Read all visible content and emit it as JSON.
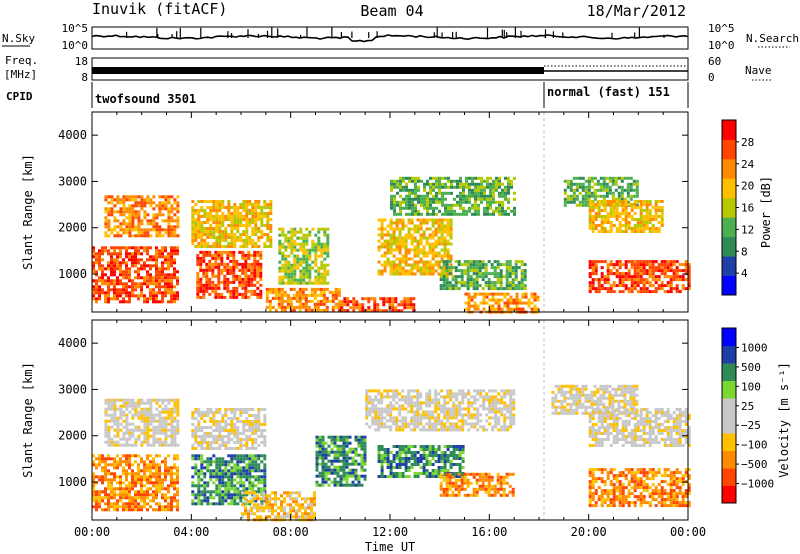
{
  "header": {
    "station": "Inuvik (fitACF)",
    "beam": "Beam 04",
    "date": "18/Mar/2012"
  },
  "strip_labels": {
    "nsky": "N.Sky",
    "nsearch": "N.Search",
    "freq_line1": "Freq.",
    "freq_line2": "[MHz]",
    "cpid": "CPID",
    "nave": "Nave"
  },
  "strip_ticks": {
    "nsky_left": [
      "10^5",
      "10^0"
    ],
    "nsky_right": [
      "10^5",
      "10^0"
    ],
    "freq_left": [
      "18",
      "8"
    ],
    "freq_right": [
      "60",
      "0"
    ]
  },
  "cpid": {
    "segments": [
      {
        "label": "twofsound 3501",
        "start_hour": 0,
        "end_hour": 18
      },
      {
        "label": "normal (fast) 151",
        "start_hour": 18,
        "end_hour": 24
      }
    ]
  },
  "colors": {
    "power": [
      "#0000ff",
      "#1f3fa8",
      "#2e8b57",
      "#4caf50",
      "#b5c800",
      "#ffc000",
      "#ff8c00",
      "#ff4500",
      "#ff0000"
    ],
    "velocity": [
      "#ff0000",
      "#ff4500",
      "#ff8c00",
      "#ffc000",
      "#c8c8c8",
      "#c8c8c8",
      "#7cd632",
      "#2e8b57",
      "#1f3fa8",
      "#0000ff"
    ]
  },
  "chart_data": [
    {
      "type": "heatmap",
      "name": "power",
      "xlabel": "",
      "ylabel": "Slant Range [km]",
      "xlim": [
        0,
        24
      ],
      "ylim": [
        180,
        4500
      ],
      "yticks": [
        1000,
        2000,
        3000,
        4000
      ],
      "colorbar": {
        "label": "Power [dB]",
        "ticks": [
          "28",
          "24",
          "20",
          "16",
          "12",
          "8",
          "4"
        ],
        "range": [
          0,
          32
        ]
      },
      "regions": [
        {
          "t0": 0.0,
          "t1": 3.5,
          "r0": 400,
          "r1": 1600,
          "value": 28
        },
        {
          "t0": 0.5,
          "t1": 3.5,
          "r0": 1800,
          "r1": 2700,
          "value": 22
        },
        {
          "t0": 4.2,
          "t1": 6.8,
          "r0": 500,
          "r1": 1500,
          "value": 28
        },
        {
          "t0": 4.0,
          "t1": 7.2,
          "r0": 1600,
          "r1": 2600,
          "value": 18
        },
        {
          "t0": 7.0,
          "t1": 10.0,
          "r0": 200,
          "r1": 700,
          "value": 24
        },
        {
          "t0": 7.5,
          "t1": 9.5,
          "r0": 800,
          "r1": 2000,
          "value": 16
        },
        {
          "t0": 10.0,
          "t1": 13.0,
          "r0": 200,
          "r1": 500,
          "value": 26
        },
        {
          "t0": 11.5,
          "t1": 14.5,
          "r0": 1000,
          "r1": 2200,
          "value": 18
        },
        {
          "t0": 12.0,
          "t1": 17.0,
          "r0": 2300,
          "r1": 3100,
          "value": 12
        },
        {
          "t0": 14.0,
          "t1": 17.5,
          "r0": 700,
          "r1": 1300,
          "value": 10
        },
        {
          "t0": 15.0,
          "t1": 18.0,
          "r0": 200,
          "r1": 600,
          "value": 22
        },
        {
          "t0": 19.0,
          "t1": 22.0,
          "r0": 2500,
          "r1": 3100,
          "value": 10
        },
        {
          "t0": 20.0,
          "t1": 23.0,
          "r0": 1900,
          "r1": 2600,
          "value": 18
        },
        {
          "t0": 20.0,
          "t1": 24.0,
          "r0": 600,
          "r1": 1300,
          "value": 28
        }
      ]
    },
    {
      "type": "heatmap",
      "name": "velocity",
      "xlabel": "Time UT",
      "ylabel": "Slant Range [km]",
      "xlim": [
        0,
        24
      ],
      "ylim": [
        180,
        4500
      ],
      "xticks": [
        "00:00",
        "04:00",
        "08:00",
        "12:00",
        "16:00",
        "20:00",
        "00:00"
      ],
      "yticks": [
        1000,
        2000,
        3000,
        4000
      ],
      "colorbar": {
        "label": "Velocity [m s⁻¹]",
        "ticks": [
          "1000",
          "500",
          "100",
          "25",
          "−25",
          "−100",
          "−500",
          "−1000"
        ]
      },
      "regions": [
        {
          "t0": 0.0,
          "t1": 3.5,
          "r0": 400,
          "r1": 1600,
          "value": -300
        },
        {
          "t0": 0.5,
          "t1": 3.5,
          "r0": 1800,
          "r1": 2800,
          "value": 0
        },
        {
          "t0": 4.0,
          "t1": 7.0,
          "r0": 500,
          "r1": 1600,
          "value": 200
        },
        {
          "t0": 4.0,
          "t1": 7.0,
          "r0": 1700,
          "r1": 2600,
          "value": 0
        },
        {
          "t0": 6.0,
          "t1": 9.0,
          "r0": 200,
          "r1": 800,
          "value": -50
        },
        {
          "t0": 9.0,
          "t1": 11.0,
          "r0": 900,
          "r1": 2000,
          "value": 150
        },
        {
          "t0": 11.5,
          "t1": 15.0,
          "r0": 1100,
          "r1": 1800,
          "value": 200
        },
        {
          "t0": 11.0,
          "t1": 17.0,
          "r0": 2100,
          "r1": 3000,
          "value": 0
        },
        {
          "t0": 14.0,
          "t1": 17.0,
          "r0": 700,
          "r1": 1200,
          "value": -150
        },
        {
          "t0": 18.5,
          "t1": 22.0,
          "r0": 2500,
          "r1": 3100,
          "value": 0
        },
        {
          "t0": 20.0,
          "t1": 24.0,
          "r0": 1800,
          "r1": 2600,
          "value": 0
        },
        {
          "t0": 20.0,
          "t1": 24.0,
          "r0": 500,
          "r1": 1300,
          "value": -300
        }
      ]
    }
  ]
}
